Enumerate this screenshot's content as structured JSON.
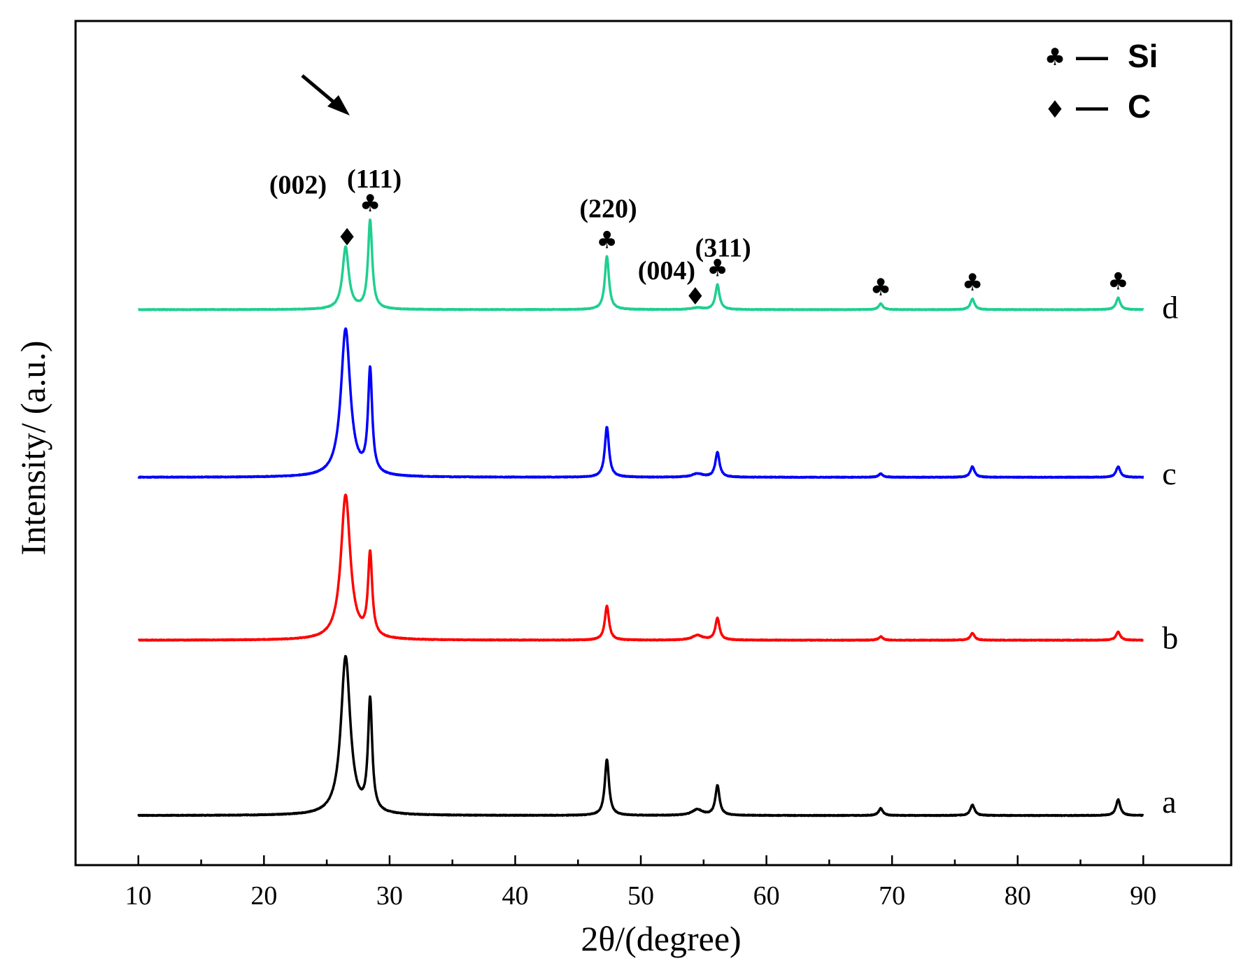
{
  "chart_data": {
    "type": "line",
    "title": "",
    "xlabel": "2θ/(degree)",
    "ylabel": "Intensity/ (a.u.)",
    "xlim": [
      5,
      97
    ],
    "xticks": [
      10,
      20,
      30,
      40,
      50,
      60,
      70,
      80,
      90
    ],
    "tick_labels": [
      "10",
      "20",
      "30",
      "40",
      "50",
      "60",
      "70",
      "80",
      "90"
    ],
    "ylim": [
      0,
      1430
    ],
    "y_ticks_shown": false,
    "series": [
      {
        "name": "a",
        "color": "#000000",
        "offset": 84,
        "peaks": [
          {
            "x": 26.5,
            "h": 268,
            "w": 0.45
          },
          {
            "x": 28.45,
            "h": 188,
            "w": 0.2
          },
          {
            "x": 47.3,
            "h": 95,
            "w": 0.2
          },
          {
            "x": 54.5,
            "h": 10,
            "w": 0.5
          },
          {
            "x": 56.1,
            "h": 50,
            "w": 0.2
          },
          {
            "x": 69.1,
            "h": 12,
            "w": 0.2
          },
          {
            "x": 76.4,
            "h": 18,
            "w": 0.2
          },
          {
            "x": 88.0,
            "h": 27,
            "w": 0.2
          }
        ]
      },
      {
        "name": "b",
        "color": "#ff0000",
        "offset": 381,
        "peaks": [
          {
            "x": 26.5,
            "h": 245,
            "w": 0.45
          },
          {
            "x": 28.45,
            "h": 140,
            "w": 0.2
          },
          {
            "x": 47.3,
            "h": 58,
            "w": 0.2
          },
          {
            "x": 54.5,
            "h": 8,
            "w": 0.5
          },
          {
            "x": 56.1,
            "h": 37,
            "w": 0.2
          },
          {
            "x": 69.1,
            "h": 6,
            "w": 0.2
          },
          {
            "x": 76.4,
            "h": 12,
            "w": 0.2
          },
          {
            "x": 88.0,
            "h": 14,
            "w": 0.2
          }
        ]
      },
      {
        "name": "c",
        "color": "#0000ff",
        "offset": 657,
        "peaks": [
          {
            "x": 26.5,
            "h": 250,
            "w": 0.45
          },
          {
            "x": 28.45,
            "h": 175,
            "w": 0.2
          },
          {
            "x": 47.3,
            "h": 85,
            "w": 0.2
          },
          {
            "x": 54.5,
            "h": 6,
            "w": 0.5
          },
          {
            "x": 56.1,
            "h": 42,
            "w": 0.2
          },
          {
            "x": 69.1,
            "h": 6,
            "w": 0.2
          },
          {
            "x": 76.4,
            "h": 18,
            "w": 0.2
          },
          {
            "x": 88.0,
            "h": 18,
            "w": 0.2
          }
        ]
      },
      {
        "name": "d",
        "color": "#1fcf8f",
        "offset": 941,
        "peaks": [
          {
            "x": 26.5,
            "h": 105,
            "w": 0.3
          },
          {
            "x": 28.45,
            "h": 150,
            "w": 0.2
          },
          {
            "x": 47.3,
            "h": 90,
            "w": 0.2
          },
          {
            "x": 54.5,
            "h": 3,
            "w": 0.5
          },
          {
            "x": 56.1,
            "h": 42,
            "w": 0.2
          },
          {
            "x": 69.1,
            "h": 10,
            "w": 0.2
          },
          {
            "x": 76.4,
            "h": 18,
            "w": 0.2
          },
          {
            "x": 88.0,
            "h": 20,
            "w": 0.2
          }
        ]
      }
    ],
    "annotations": [
      {
        "label": "(002)",
        "x": 26.5,
        "phase": "C"
      },
      {
        "label": "(111)",
        "x": 28.45,
        "phase": "Si"
      },
      {
        "label": "(220)",
        "x": 47.3,
        "phase": "Si"
      },
      {
        "label": "(004)",
        "x": 54.5,
        "phase": "C"
      },
      {
        "label": "(311)",
        "x": 56.1,
        "phase": "Si"
      }
    ],
    "unlabeled_si_peaks": [
      69.1,
      76.4,
      88.0
    ],
    "legend": {
      "position": "top-right",
      "entries": [
        {
          "symbol": "♣",
          "dash": "—",
          "label": "Si"
        },
        {
          "symbol": "♦",
          "dash": "—",
          "label": "C"
        }
      ]
    }
  }
}
